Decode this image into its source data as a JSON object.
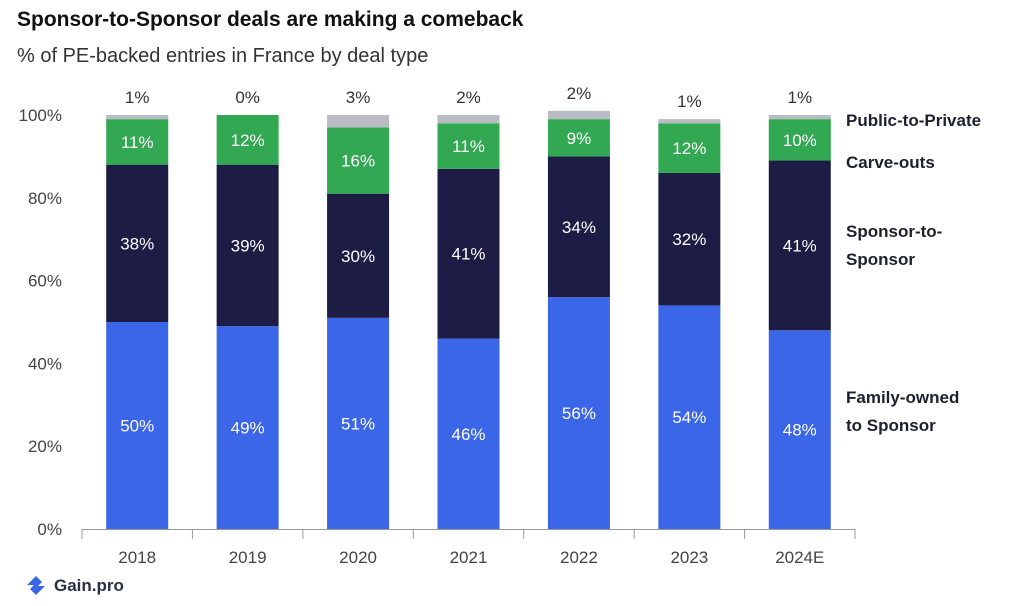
{
  "title": "Sponsor-to-Sponsor deals are making a comeback",
  "subtitle": "% of PE-backed entries in France by deal type",
  "brand": "Gain.pro",
  "chart_data": {
    "type": "bar",
    "stacked": true,
    "categories": [
      "2018",
      "2019",
      "2020",
      "2021",
      "2022",
      "2023",
      "2024E"
    ],
    "series": [
      {
        "name": "Family-owned to Sponsor",
        "color": "#3b66e8",
        "label_color": "#ffffff",
        "values": [
          50,
          49,
          51,
          46,
          56,
          54,
          48
        ]
      },
      {
        "name": "Sponsor-to-Sponsor",
        "color": "#1d1c45",
        "label_color": "#ffffff",
        "values": [
          38,
          39,
          30,
          41,
          34,
          32,
          41
        ]
      },
      {
        "name": "Carve-outs",
        "color": "#33a852",
        "label_color": "#ffffff",
        "values": [
          11,
          12,
          16,
          11,
          9,
          12,
          10
        ]
      },
      {
        "name": "Public-to-Private",
        "color": "#b9bcc2",
        "label_color": "#333333",
        "values": [
          1,
          0,
          3,
          2,
          2,
          1,
          1
        ]
      }
    ],
    "legend": [
      {
        "lines": [
          "Public-to-Private"
        ],
        "color": "#b9bcc2"
      },
      {
        "lines": [
          "Carve-outs"
        ],
        "color": "#33a852"
      },
      {
        "lines": [
          "Sponsor-to-",
          "Sponsor"
        ],
        "color": "#1d1c45"
      },
      {
        "lines": [
          "Family-owned",
          "to Sponsor"
        ],
        "color": "#3b66e8"
      }
    ],
    "y_ticks": [
      "0%",
      "20%",
      "40%",
      "60%",
      "80%",
      "100%"
    ],
    "ylim": [
      0,
      100
    ],
    "value_suffix": "%",
    "legend_position": "right",
    "grid": false
  }
}
